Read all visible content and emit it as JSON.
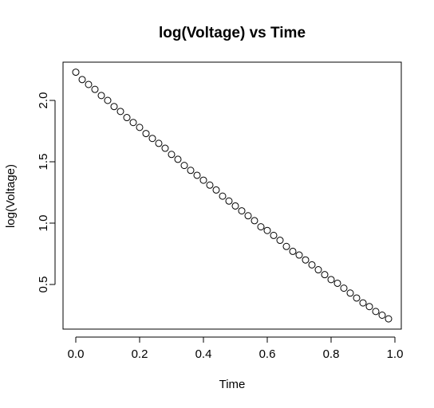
{
  "chart_data": {
    "type": "scatter",
    "title": "log(Voltage) vs Time",
    "xlabel": "Time",
    "ylabel": "log(Voltage)",
    "xlim": [
      0,
      1
    ],
    "ylim": [
      0.2,
      2.25
    ],
    "x_ticks": [
      0,
      0.2,
      0.4,
      0.6,
      0.8,
      1.0
    ],
    "x_tick_labels": [
      "0.0",
      "0.2",
      "0.4",
      "0.6",
      "0.8",
      "1.0"
    ],
    "y_ticks": [
      0.5,
      1.0,
      1.5,
      2.0
    ],
    "y_tick_labels": [
      "0.5",
      "1.0",
      "1.5",
      "2.0"
    ],
    "grid": false,
    "legend": "none",
    "point_style": "open-circle",
    "point_color": "#000000",
    "series": [
      {
        "x": [
          0.0,
          0.02,
          0.04,
          0.06,
          0.08,
          0.1,
          0.12,
          0.14,
          0.16,
          0.18,
          0.2,
          0.22,
          0.24,
          0.26,
          0.28,
          0.3,
          0.32,
          0.34,
          0.36,
          0.38,
          0.4,
          0.42,
          0.44,
          0.46,
          0.48,
          0.5,
          0.52,
          0.54,
          0.56,
          0.58,
          0.6,
          0.62,
          0.64,
          0.66,
          0.68,
          0.7,
          0.72,
          0.74,
          0.76,
          0.78,
          0.8,
          0.82,
          0.84,
          0.86,
          0.88,
          0.9,
          0.92,
          0.94,
          0.96,
          0.98
        ],
        "y": [
          2.23,
          2.17,
          2.13,
          2.09,
          2.04,
          2.0,
          1.95,
          1.91,
          1.86,
          1.82,
          1.78,
          1.73,
          1.69,
          1.65,
          1.61,
          1.56,
          1.52,
          1.47,
          1.43,
          1.39,
          1.35,
          1.31,
          1.27,
          1.22,
          1.18,
          1.14,
          1.1,
          1.06,
          1.02,
          0.97,
          0.94,
          0.9,
          0.86,
          0.81,
          0.77,
          0.74,
          0.7,
          0.66,
          0.62,
          0.58,
          0.54,
          0.51,
          0.47,
          0.43,
          0.39,
          0.35,
          0.32,
          0.28,
          0.25,
          0.22
        ]
      }
    ]
  }
}
